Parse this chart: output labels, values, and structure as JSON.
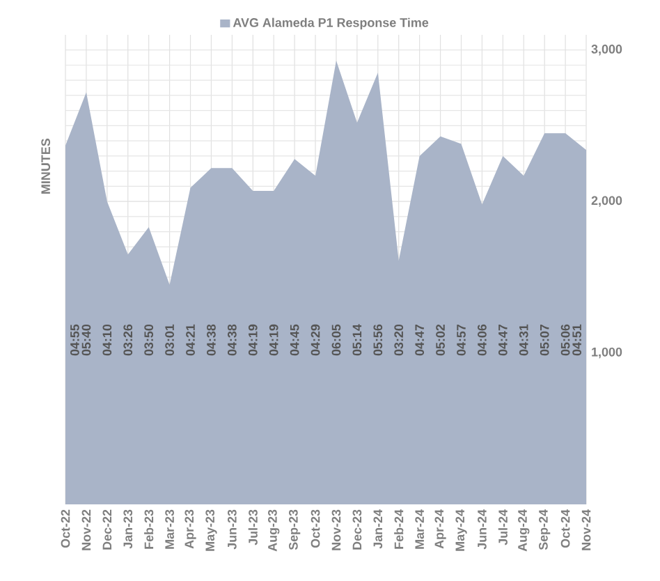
{
  "chart_data": {
    "type": "area",
    "ylabel": "MINUTES",
    "categories": [
      "Oct-22",
      "Nov-22",
      "Dec-22",
      "Jan-23",
      "Feb-23",
      "Mar-23",
      "Apr-23",
      "May-23",
      "Jun-23",
      "Jul-23",
      "Aug-23",
      "Sep-23",
      "Oct-23",
      "Nov-23",
      "Dec-23",
      "Jan-24",
      "Feb-24",
      "Mar-24",
      "Apr-24",
      "May-24",
      "Jun-24",
      "Jul-24",
      "Aug-24",
      "Sep-24",
      "Oct-24",
      "Nov-24"
    ],
    "series": [
      {
        "name": "AVG Alameda P1 Response Time",
        "color": "#a9b4c8",
        "values": [
          2370,
          2720,
          2000,
          1650,
          1830,
          1450,
          2090,
          2220,
          2220,
          2070,
          2070,
          2280,
          2170,
          2930,
          2520,
          2850,
          1610,
          2300,
          2430,
          2380,
          1980,
          2300,
          2170,
          2450,
          2450,
          2340
        ]
      }
    ],
    "annotations": [
      "04:55",
      "05:40",
      "04:10",
      "03:26",
      "03:50",
      "03:01",
      "04:21",
      "04:38",
      "04:38",
      "04:19",
      "04:19",
      "04:45",
      "04:29",
      "06:05",
      "05:14",
      "05:56",
      "03:20",
      "04:47",
      "05:02",
      "04:57",
      "04:06",
      "04:47",
      "04:31",
      "05:07",
      "05:06",
      "04:51"
    ],
    "ylim": [
      0,
      3100
    ],
    "yticks": [
      {
        "value": 1000,
        "label": "1,000"
      },
      {
        "value": 2000,
        "label": "2,000"
      },
      {
        "value": 3000,
        "label": "3,000"
      }
    ],
    "grid": true,
    "legend": "top"
  }
}
